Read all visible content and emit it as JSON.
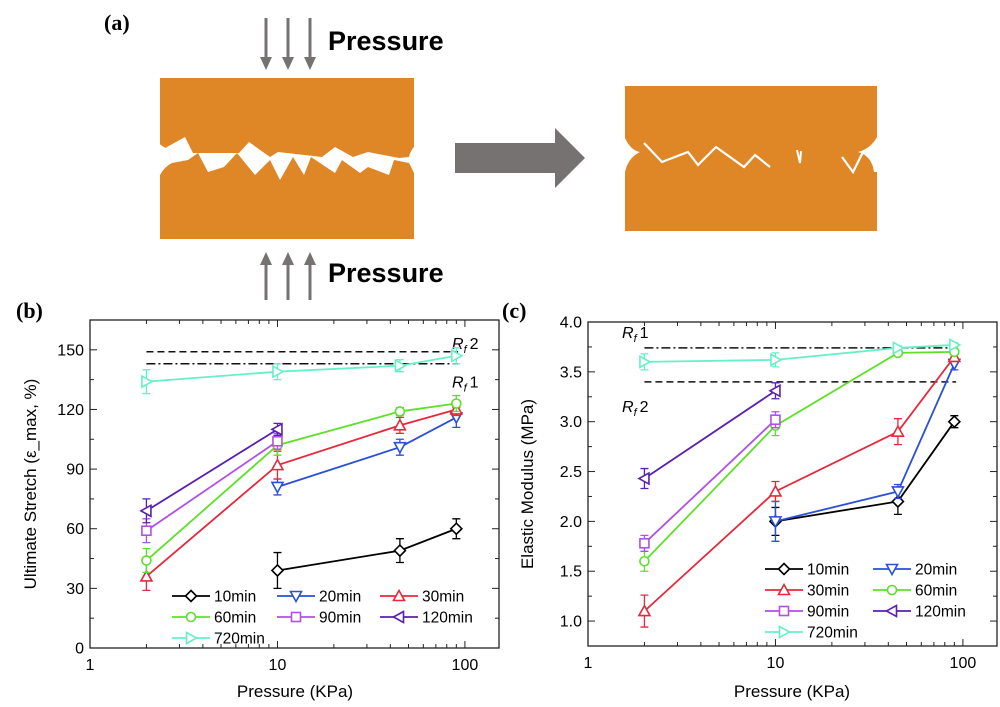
{
  "panel_a": {
    "label": "(a)",
    "pressure_top": "Pressure",
    "pressure_bottom": "Pressure",
    "colors": {
      "block": "#df8726",
      "arrow": "#777272"
    }
  },
  "chart_data": [
    {
      "type": "line",
      "panel_label": "(b)",
      "xlabel": "Pressure (KPa)",
      "ylabel": "Ultimate Stretch  (ε_max, %)",
      "xscale": "log",
      "xlim": [
        1,
        152
      ],
      "ylim": [
        0,
        165
      ],
      "xticks": [
        1,
        10,
        100
      ],
      "xtick_labels": [
        "1",
        "10",
        "100"
      ],
      "yticks": [
        0,
        30,
        60,
        90,
        120,
        150
      ],
      "ytick_labels": [
        "0",
        "30",
        "60",
        "90",
        "120",
        "150"
      ],
      "legend_position": "bottom",
      "reference_lines": [
        {
          "name": "Rf2",
          "label_main": "R",
          "label_sub": "f",
          "label_num": "2",
          "value": 149,
          "style": "dashed"
        },
        {
          "name": "Rf1",
          "label_main": "R",
          "label_sub": "f",
          "label_num": "1",
          "value": 143,
          "style": "dashdot"
        }
      ],
      "series": [
        {
          "name": "10min",
          "color": "#000000",
          "marker": "diamond",
          "x": [
            10,
            45,
            90
          ],
          "y": [
            39,
            49,
            60
          ],
          "err": [
            9,
            6,
            5
          ]
        },
        {
          "name": "20min",
          "color": "#2a4fd8",
          "marker": "triangle-down",
          "x": [
            10,
            45,
            90
          ],
          "y": [
            81,
            101,
            116
          ],
          "err": [
            4,
            4,
            5
          ]
        },
        {
          "name": "30min",
          "color": "#e8283a",
          "marker": "triangle-up",
          "x": [
            2,
            10,
            45,
            90
          ],
          "y": [
            36,
            92,
            112,
            120
          ],
          "err": [
            7,
            7,
            4,
            3
          ]
        },
        {
          "name": "60min",
          "color": "#5ee02a",
          "marker": "circle",
          "x": [
            2,
            10,
            45,
            90
          ],
          "y": [
            44,
            102,
            119,
            123
          ],
          "err": [
            6,
            5,
            2,
            4
          ]
        },
        {
          "name": "90min",
          "color": "#b050e8",
          "marker": "square",
          "x": [
            2,
            10
          ],
          "y": [
            59,
            104
          ],
          "err": [
            6,
            4
          ]
        },
        {
          "name": "120min",
          "color": "#5a20b0",
          "marker": "triangle-left",
          "x": [
            2,
            10
          ],
          "y": [
            69,
            110
          ],
          "err": [
            6,
            3
          ]
        },
        {
          "name": "720min",
          "color": "#66f0c8",
          "marker": "triangle-right",
          "x": [
            2,
            10,
            45,
            90
          ],
          "y": [
            134,
            139,
            142,
            147
          ],
          "err": [
            6,
            4,
            3,
            4
          ]
        }
      ]
    },
    {
      "type": "line",
      "panel_label": "(c)",
      "xlabel": "Pressure (KPa)",
      "ylabel": "Elastic Modulus (MPa)",
      "xscale": "log",
      "xlim": [
        1,
        152
      ],
      "ylim": [
        0.75,
        4.0
      ],
      "xticks": [
        1,
        10,
        100
      ],
      "xtick_labels": [
        "1",
        "10",
        "100"
      ],
      "yticks": [
        1.0,
        1.5,
        2.0,
        2.5,
        3.0,
        3.5,
        4.0
      ],
      "ytick_labels": [
        "1.0",
        "1.5",
        "2.0",
        "2.5",
        "3.0",
        "3.5",
        "4.0"
      ],
      "legend_position": "bottom-right",
      "reference_lines": [
        {
          "name": "Rf1",
          "label_main": "R",
          "label_sub": "f",
          "label_num": "1",
          "value": 3.74,
          "style": "dashdot"
        },
        {
          "name": "Rf2",
          "label_main": "R",
          "label_sub": "f",
          "label_num": "2",
          "value": 3.4,
          "style": "dashed"
        }
      ],
      "series": [
        {
          "name": "10min",
          "color": "#000000",
          "marker": "diamond",
          "x": [
            10,
            45,
            90
          ],
          "y": [
            2.0,
            2.2,
            3.0
          ],
          "err": [
            0.14,
            0.13,
            0.06
          ]
        },
        {
          "name": "20min",
          "color": "#2a4fd8",
          "marker": "triangle-down",
          "x": [
            10,
            45,
            90
          ],
          "y": [
            2.0,
            2.3,
            3.58
          ],
          "err": [
            0.2,
            0.07,
            0.06
          ]
        },
        {
          "name": "30min",
          "color": "#e8283a",
          "marker": "triangle-up",
          "x": [
            2,
            10,
            45,
            90
          ],
          "y": [
            1.1,
            2.3,
            2.9,
            3.65
          ],
          "err": [
            0.16,
            0.1,
            0.13,
            0.04
          ]
        },
        {
          "name": "60min",
          "color": "#5ee02a",
          "marker": "circle",
          "x": [
            2,
            10,
            45,
            90
          ],
          "y": [
            1.6,
            2.96,
            3.69,
            3.7
          ],
          "err": [
            0.1,
            0.1,
            0.02,
            0.02
          ]
        },
        {
          "name": "90min",
          "color": "#b050e8",
          "marker": "square",
          "x": [
            2,
            10
          ],
          "y": [
            1.78,
            3.02
          ],
          "err": [
            0.08,
            0.08
          ]
        },
        {
          "name": "120min",
          "color": "#5a20b0",
          "marker": "triangle-left",
          "x": [
            2,
            10
          ],
          "y": [
            2.43,
            3.31
          ],
          "err": [
            0.1,
            0.08
          ]
        },
        {
          "name": "720min",
          "color": "#66f0c8",
          "marker": "triangle-right",
          "x": [
            2,
            10,
            45,
            90
          ],
          "y": [
            3.6,
            3.62,
            3.74,
            3.77
          ],
          "err": [
            0.08,
            0.07,
            0.02,
            0.02
          ]
        }
      ]
    }
  ]
}
